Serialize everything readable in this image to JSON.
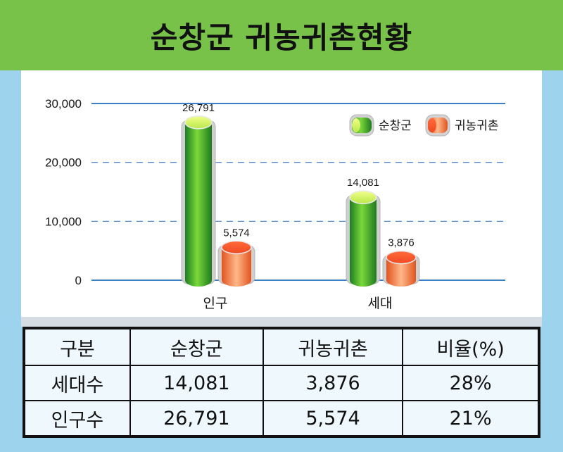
{
  "title": "순창군  귀농귀촌현황",
  "colors": {
    "header_green": "#78c24a",
    "background_blue": "#9dd3ec",
    "series_green": "#3aa33b",
    "series_orange": "#f2774d",
    "axis_line": "#3b7fc4"
  },
  "chart_data": {
    "type": "bar",
    "categories": [
      "인구",
      "세대"
    ],
    "series": [
      {
        "name": "순창군",
        "values": [
          26791,
          14081
        ]
      },
      {
        "name": "귀농귀촌",
        "values": [
          5574,
          3876
        ]
      }
    ],
    "value_labels": [
      [
        "26,791",
        "14,081"
      ],
      [
        "5,574",
        "3,876"
      ]
    ],
    "y_ticks": [
      0,
      10000,
      20000,
      30000
    ],
    "y_tick_labels": [
      "0",
      "10,000",
      "20,000",
      "30,000"
    ],
    "ylim": [
      0,
      30000
    ],
    "grid": true,
    "legend_position": "top-right"
  },
  "table": {
    "headers": [
      "구분",
      "순창군",
      "귀농귀촌",
      "비율(%)"
    ],
    "rows": [
      [
        "세대수",
        "14,081",
        "3,876",
        "28%"
      ],
      [
        "인구수",
        "26,791",
        "5,574",
        "21%"
      ]
    ]
  }
}
